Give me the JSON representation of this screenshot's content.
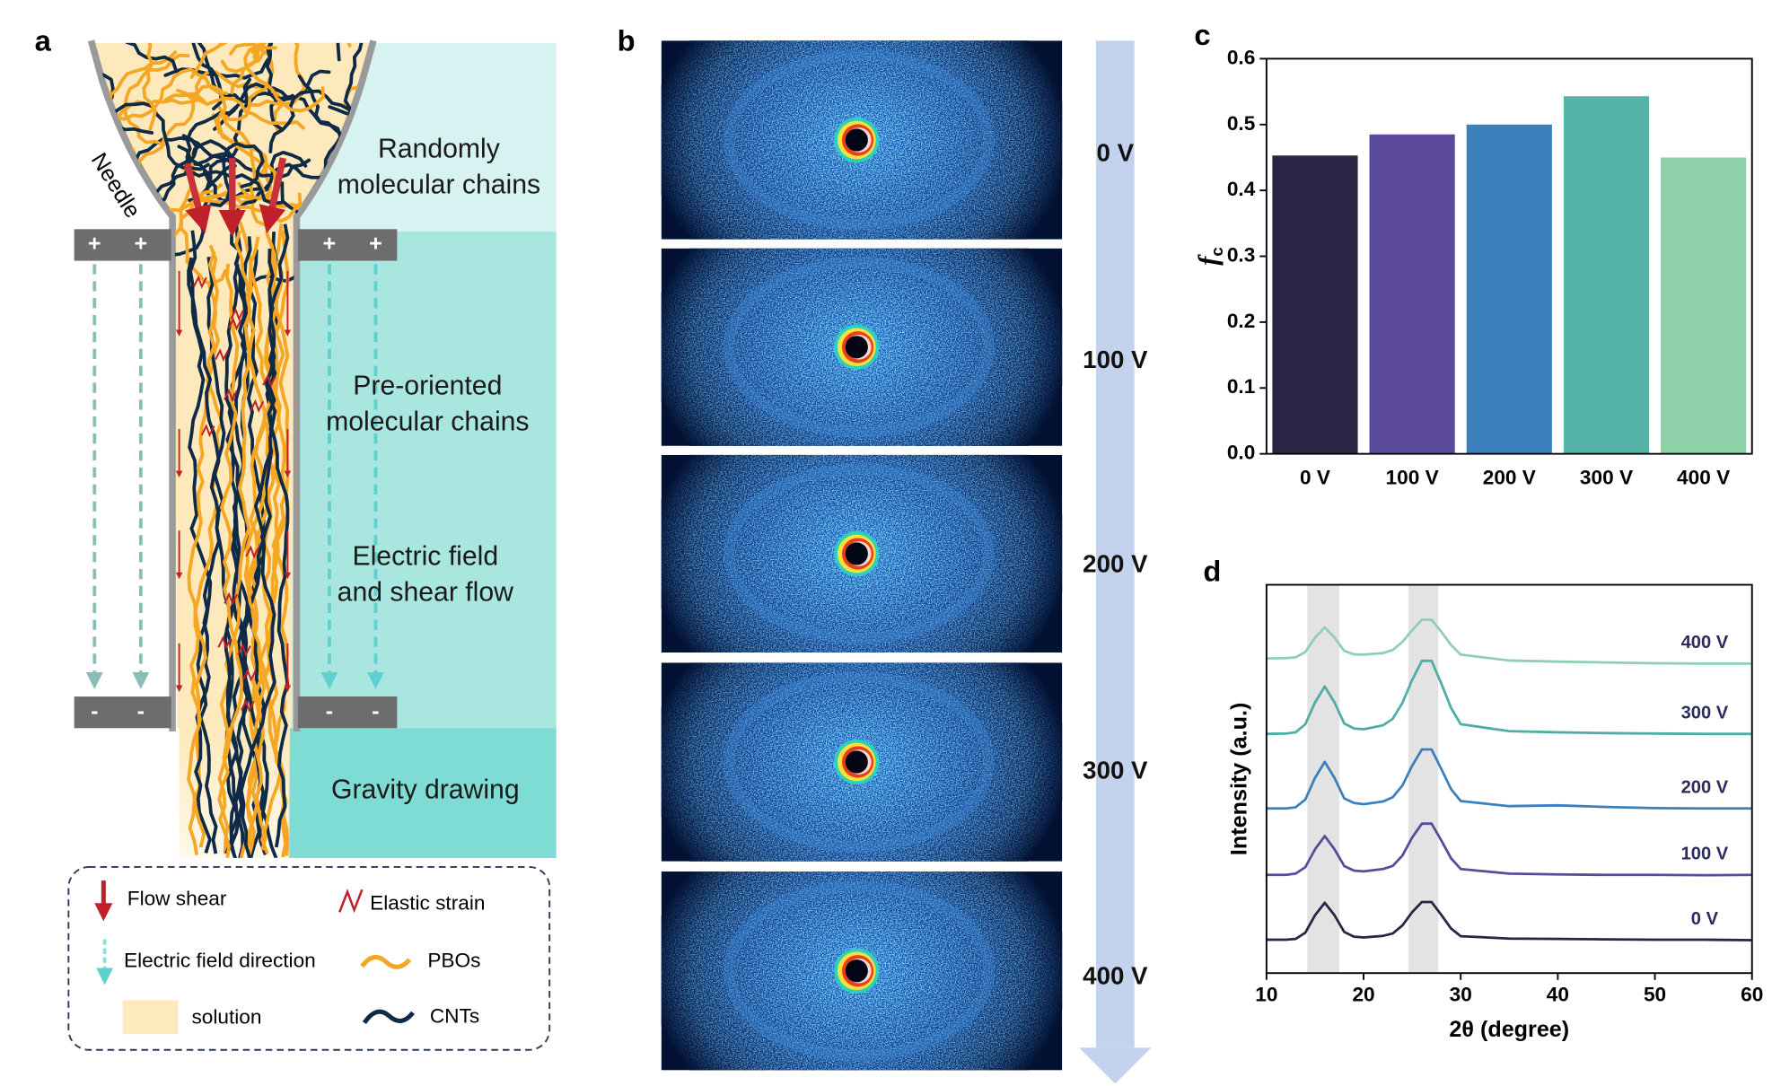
{
  "panel_labels": [
    "a",
    "b",
    "c",
    "d"
  ],
  "panel_a": {
    "needle_label": "Needle",
    "zones": [
      {
        "lines": [
          "Randomly",
          "molecular chains"
        ]
      },
      {
        "lines": [
          "Pre-oriented",
          "molecular  chains"
        ]
      },
      {
        "lines": [
          "Electric field",
          "and shear flow"
        ]
      },
      {
        "lines": [
          "Gravity drawing"
        ]
      }
    ],
    "top_electrode_signs": [
      "+",
      "+",
      "+",
      "+"
    ],
    "bottom_electrode_signs": [
      "-",
      "-",
      "-",
      "-"
    ],
    "legend": {
      "flow_shear": "Flow shear",
      "elastic_strain": "Elastic strain",
      "electric_field_direction": "Electric field direction",
      "pbos": "PBOs",
      "solution": "solution",
      "cnts": "CNTs"
    }
  },
  "panel_b": {
    "labels": [
      "0 V",
      "100 V",
      "200 V",
      "300 V",
      "400 V"
    ]
  },
  "chart_data": [
    {
      "type": "bar",
      "categories": [
        "0 V",
        "100 V",
        "200 V",
        "300 V",
        "400 V"
      ],
      "values": [
        0.453,
        0.485,
        0.5,
        0.543,
        0.45
      ],
      "colors": [
        "#2a2545",
        "#5b4a9a",
        "#3b7fbb",
        "#55b3a8",
        "#8ed0a8"
      ],
      "ylabel": "f",
      "ylabel_subscript": "c",
      "ylim": [
        0,
        0.6
      ],
      "yticks": [
        {
          "value": 0,
          "label": "0.0"
        },
        0.1,
        0.2,
        0.3,
        0.4,
        0.5,
        0.6
      ]
    },
    {
      "type": "line",
      "xlabel": "2θ (degree)",
      "ylabel": "Intensity (a.u.)",
      "x": [
        10,
        12,
        13,
        14,
        15,
        16,
        17,
        18,
        19,
        20,
        22,
        23,
        24,
        25,
        26,
        27,
        28,
        29,
        30,
        35,
        40,
        45,
        50,
        55,
        60
      ],
      "series": [
        {
          "name": "0 V",
          "color": "#2a2545",
          "values": [
            8.6,
            8.6,
            8.8,
            10.4,
            14.9,
            18.1,
            14.9,
            10.6,
            9.4,
            9.2,
            9.6,
            10.2,
            12.3,
            15.7,
            18.3,
            18.3,
            15.0,
            11.5,
            9.5,
            8.9,
            8.8,
            8.7,
            8.6,
            8.6,
            8.5
          ]
        },
        {
          "name": "100 V",
          "color": "#5b4a9a",
          "values": [
            25.3,
            25.3,
            25.6,
            27.3,
            31.9,
            35.3,
            31.9,
            27.6,
            26.4,
            26.2,
            26.8,
            27.6,
            30.3,
            34.9,
            38.5,
            38.5,
            34.2,
            29.6,
            26.8,
            25.6,
            25.4,
            25.3,
            25.3,
            25.2,
            25.3
          ]
        },
        {
          "name": "200 V",
          "color": "#3b7fbb",
          "values": [
            42.4,
            42.4,
            42.7,
            44.7,
            50.3,
            54.4,
            50.3,
            45.0,
            43.8,
            43.5,
            44.2,
            45.3,
            48.3,
            53.4,
            57.6,
            57.6,
            52.6,
            47.4,
            44.3,
            43.0,
            43.2,
            42.8,
            42.5,
            42.4,
            42.4
          ]
        },
        {
          "name": "300 V",
          "color": "#4fada5",
          "values": [
            61.6,
            61.7,
            62.0,
            64.1,
            69.7,
            73.8,
            69.7,
            64.3,
            63.0,
            62.8,
            63.8,
            65.5,
            69.6,
            75.5,
            80.4,
            80.4,
            74.6,
            68.3,
            64.1,
            62.3,
            62.0,
            61.8,
            61.7,
            61.6,
            61.6
          ]
        },
        {
          "name": "400 V",
          "color": "#8fd0b0",
          "values": [
            81.0,
            81.1,
            81.3,
            82.7,
            86.4,
            89.0,
            86.4,
            83.0,
            82.1,
            82.0,
            82.4,
            83.2,
            85.3,
            88.3,
            91.0,
            91.0,
            87.9,
            84.5,
            82.0,
            80.5,
            80.2,
            80.0,
            79.8,
            79.7,
            79.7
          ]
        }
      ],
      "xlim": [
        10,
        60
      ],
      "xticks": [
        10,
        20,
        30,
        40,
        50,
        60
      ],
      "ylim": [
        0,
        100
      ],
      "highlight_ranges": [
        [
          14.2,
          17.5
        ],
        [
          24.6,
          27.7
        ]
      ]
    }
  ]
}
